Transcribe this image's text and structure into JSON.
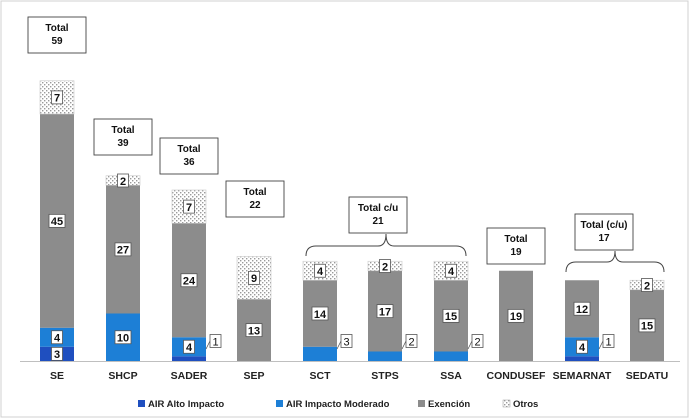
{
  "colors": {
    "alto": "#1f4fbf",
    "moderado": "#1d7fd6",
    "exencion": "#8c8c8c",
    "otros": "#d9d9d9"
  },
  "chart_data": {
    "type": "bar",
    "stacked": true,
    "categories": [
      "SE",
      "SHCP",
      "SADER",
      "SEP",
      "SCT",
      "STPS",
      "SSA",
      "CONDUSEF",
      "SEMARNAT",
      "SEDATU"
    ],
    "series": [
      {
        "name": "AIR Alto Impacto",
        "values": [
          3,
          0,
          1,
          0,
          0,
          0,
          0,
          0,
          1,
          0
        ]
      },
      {
        "name": "AIR Impacto Moderado",
        "values": [
          4,
          10,
          4,
          0,
          3,
          2,
          2,
          0,
          4,
          0
        ]
      },
      {
        "name": "Exención",
        "values": [
          45,
          27,
          24,
          13,
          14,
          17,
          15,
          19,
          12,
          15
        ]
      },
      {
        "name": "Otros",
        "values": [
          7,
          2,
          7,
          9,
          4,
          2,
          4,
          0,
          0,
          2
        ]
      }
    ],
    "value_labels": [
      [
        "3",
        "",
        "",
        "",
        "",
        "",
        "",
        "",
        "",
        ""
      ],
      [
        "4",
        "10",
        "4",
        "",
        "",
        "",
        "",
        "",
        "4",
        ""
      ],
      [
        "45",
        "27",
        "24",
        "13",
        "14",
        "17",
        "15",
        "19",
        "12",
        "15"
      ],
      [
        "7",
        "2",
        "7",
        "9",
        "4",
        "2",
        "4",
        "",
        "",
        "2"
      ]
    ],
    "side_labels": [
      "",
      "",
      "1",
      "",
      "3",
      "2",
      "2",
      "",
      "1",
      ""
    ],
    "total_labels": [
      {
        "line1": "Total",
        "line2": "59"
      },
      {
        "line1": "Total",
        "line2": "39"
      },
      {
        "line1": "Total",
        "line2": "36"
      },
      {
        "line1": "Total",
        "line2": "22"
      },
      {
        "line1": "Total c/u",
        "line2": "21"
      },
      {
        "line1": "Total",
        "line2": "19"
      },
      {
        "line1": "Total (c/u)",
        "line2": "17"
      }
    ],
    "legend": [
      "AIR Alto Impacto",
      "AIR Impacto Moderado",
      "Exención",
      "Otros"
    ],
    "legend_position": "bottom",
    "ylim": [
      0,
      60
    ],
    "grid": false
  }
}
